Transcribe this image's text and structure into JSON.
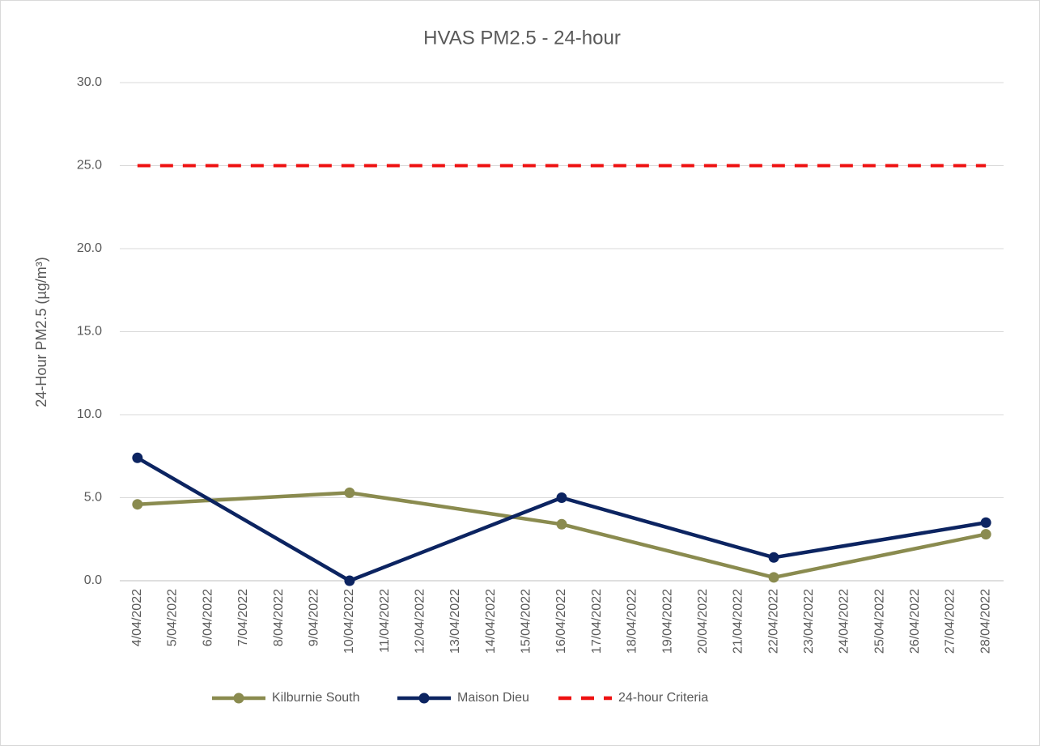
{
  "chart_data": {
    "type": "line",
    "title": "HVAS PM2.5 - 24-hour",
    "y_label": "24-Hour PM2.5 (µg/m³)",
    "categories": [
      "4/04/2022",
      "5/04/2022",
      "6/04/2022",
      "7/04/2022",
      "8/04/2022",
      "9/04/2022",
      "10/04/2022",
      "11/04/2022",
      "12/04/2022",
      "13/04/2022",
      "14/04/2022",
      "15/04/2022",
      "16/04/2022",
      "17/04/2022",
      "18/04/2022",
      "19/04/2022",
      "20/04/2022",
      "21/04/2022",
      "22/04/2022",
      "23/04/2022",
      "24/04/2022",
      "25/04/2022",
      "26/04/2022",
      "27/04/2022",
      "28/04/2022"
    ],
    "series": [
      {
        "name": "Kilburnie South",
        "color": "#8a8b4f",
        "x": [
          "4/04/2022",
          "10/04/2022",
          "16/04/2022",
          "22/04/2022",
          "28/04/2022"
        ],
        "values": [
          4.6,
          5.3,
          3.4,
          0.2,
          2.8
        ]
      },
      {
        "name": "Maison Dieu",
        "color": "#0c2461",
        "x": [
          "4/04/2022",
          "10/04/2022",
          "16/04/2022",
          "22/04/2022",
          "28/04/2022"
        ],
        "values": [
          7.4,
          0.0,
          5.0,
          1.4,
          3.5
        ]
      },
      {
        "name": "24-hour Criteria",
        "color": "#ee1111",
        "dashed": true,
        "values": [
          25,
          25,
          25,
          25,
          25,
          25,
          25,
          25,
          25,
          25,
          25,
          25,
          25,
          25,
          25,
          25,
          25,
          25,
          25,
          25,
          25,
          25,
          25,
          25,
          25
        ]
      }
    ],
    "ylim": [
      0,
      30
    ],
    "yticks": [
      {
        "value": 0,
        "label": "0.0"
      },
      {
        "value": 5,
        "label": "5.0"
      },
      {
        "value": 10,
        "label": "10.0"
      },
      {
        "value": 15,
        "label": "15.0"
      },
      {
        "value": 20,
        "label": "20.0"
      },
      {
        "value": 25,
        "label": "25.0"
      },
      {
        "value": 30,
        "label": "30.0"
      }
    ],
    "grid": true,
    "legend": "bottom"
  }
}
